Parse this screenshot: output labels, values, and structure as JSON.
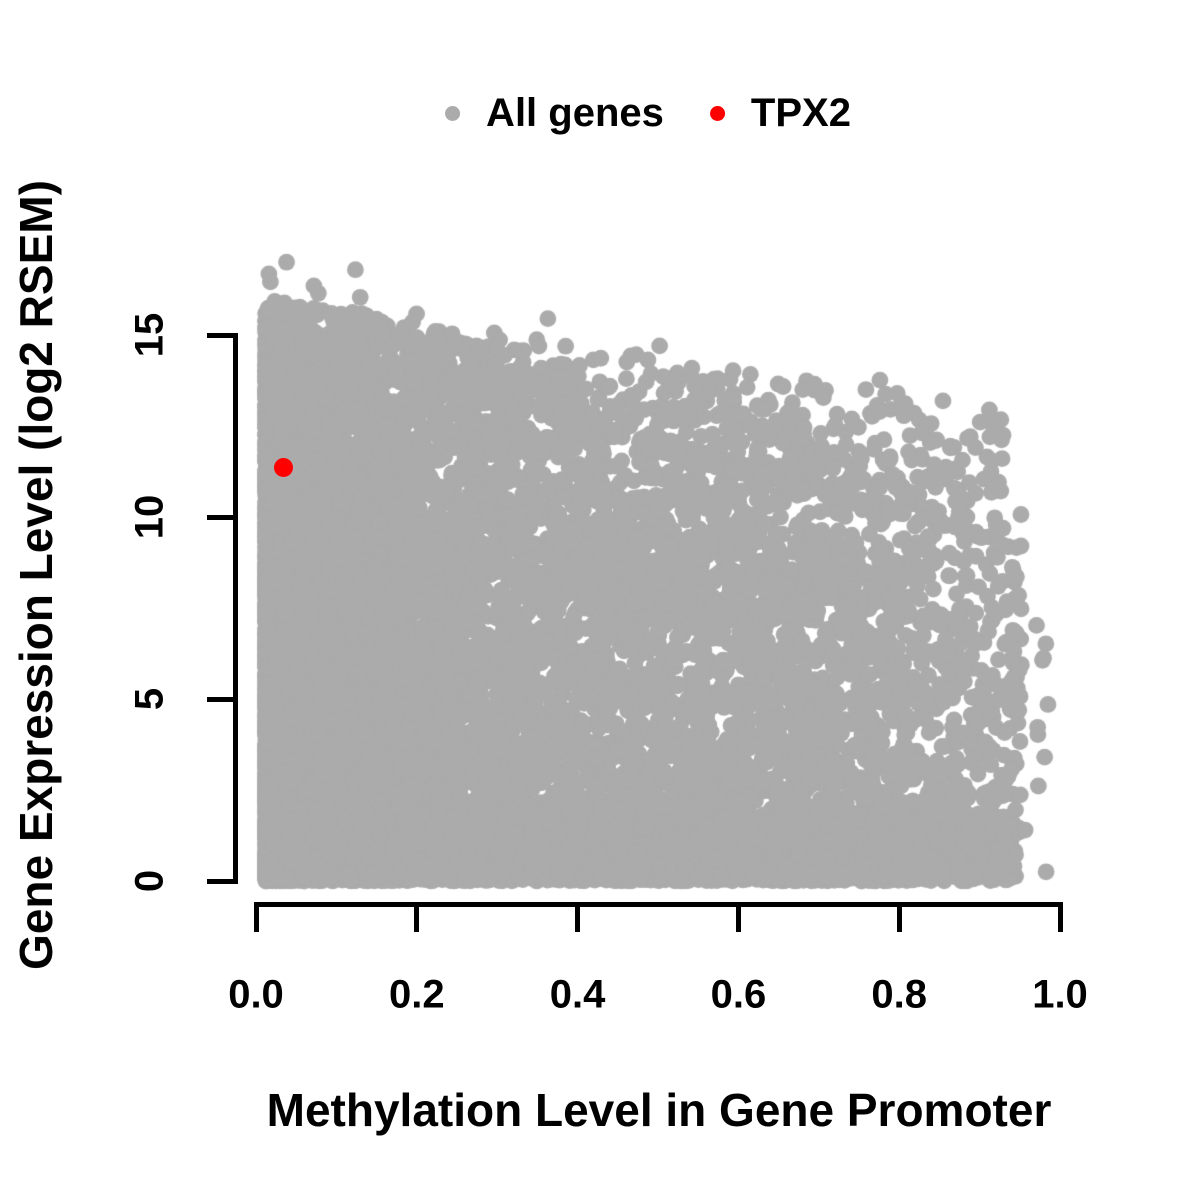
{
  "figure": {
    "background": "#FFFFFF",
    "axis_color": "#000000",
    "text_color": "#000000"
  },
  "chart_data": {
    "type": "scatter",
    "title": "",
    "xlabel": "Methylation Level in Gene Promoter",
    "ylabel": "Gene Expression Level (log2 RSEM)",
    "xlim": [
      0,
      1
    ],
    "ylim": [
      0,
      17.5
    ],
    "grid": false,
    "legend_position": "top-center",
    "x_ticks": [
      0,
      0.2,
      0.4,
      0.6,
      0.8,
      1.0
    ],
    "x_tick_labels": [
      "0.0",
      "0.2",
      "0.4",
      "0.6",
      "0.8",
      "1.0"
    ],
    "y_ticks": [
      0,
      5,
      10,
      15
    ],
    "y_tick_labels": [
      "0",
      "5",
      "10",
      "15"
    ],
    "legend": [
      {
        "label": "All genes",
        "color": "#ABABAB",
        "marker": "circle"
      },
      {
        "label": "TPX2",
        "color": "#FF0000",
        "marker": "circle"
      }
    ],
    "series": [
      {
        "name": "All genes",
        "color": "#ABABAB",
        "marker_radius_px": 8.4,
        "n_points_estimate": 15000,
        "description": "Dense wedge-shaped cloud: promoter methylation 0.01-0.96, expression 0-17 log2 RSEM; upper envelope falls from ~15 at low methylation to ~9 near methylation 0.9; solid mass near y=0 across full x range; sparse outliers above envelope and right of x=0.94.",
        "featured_points": [
          [
            0.038,
            17.0
          ],
          [
            0.072,
            16.35
          ],
          [
            0.223,
            15.1
          ],
          [
            0.363,
            15.45
          ],
          [
            0.502,
            14.7
          ],
          [
            0.583,
            13.2
          ],
          [
            0.68,
            13.5
          ],
          [
            0.776,
            13.76
          ],
          [
            0.985,
            4.85
          ]
        ],
        "generation": {
          "seed": 1337,
          "n_core": 11000,
          "x_min": 0.012,
          "x_max": 0.952,
          "x_pow": 2.6,
          "env_a": 14.8,
          "env_b": 6.0,
          "env_jitter": 0.09,
          "env_cap": 15.6,
          "y_pow": 1.25,
          "right_taper_start": 0.78,
          "right_taper_max_drop": 0.55,
          "n_bottom": 2800,
          "bottom_x_max": 0.945,
          "bottom_x_pow": 1.3,
          "bottom_sigma": 1.0,
          "bottom_clip": 3.0,
          "n_upper": 800,
          "upper_a": 16.0,
          "upper_b": 3.2,
          "upper_pow": 1.7,
          "upper_x_max": 0.93,
          "n_left_high": 22,
          "left_high_x_min": 0.015,
          "left_high_x_max": 0.13,
          "left_high_y_min": 14.6,
          "left_high_y_max": 17.1,
          "n_stragglers": 14,
          "straggler_x": [
            0.94,
            0.985
          ],
          "straggler_y": [
            0.2,
            7.5
          ]
        }
      },
      {
        "name": "TPX2",
        "color": "#FF0000",
        "marker_radius_px": 9.5,
        "points": [
          [
            0.034,
            11.35
          ]
        ]
      }
    ]
  }
}
